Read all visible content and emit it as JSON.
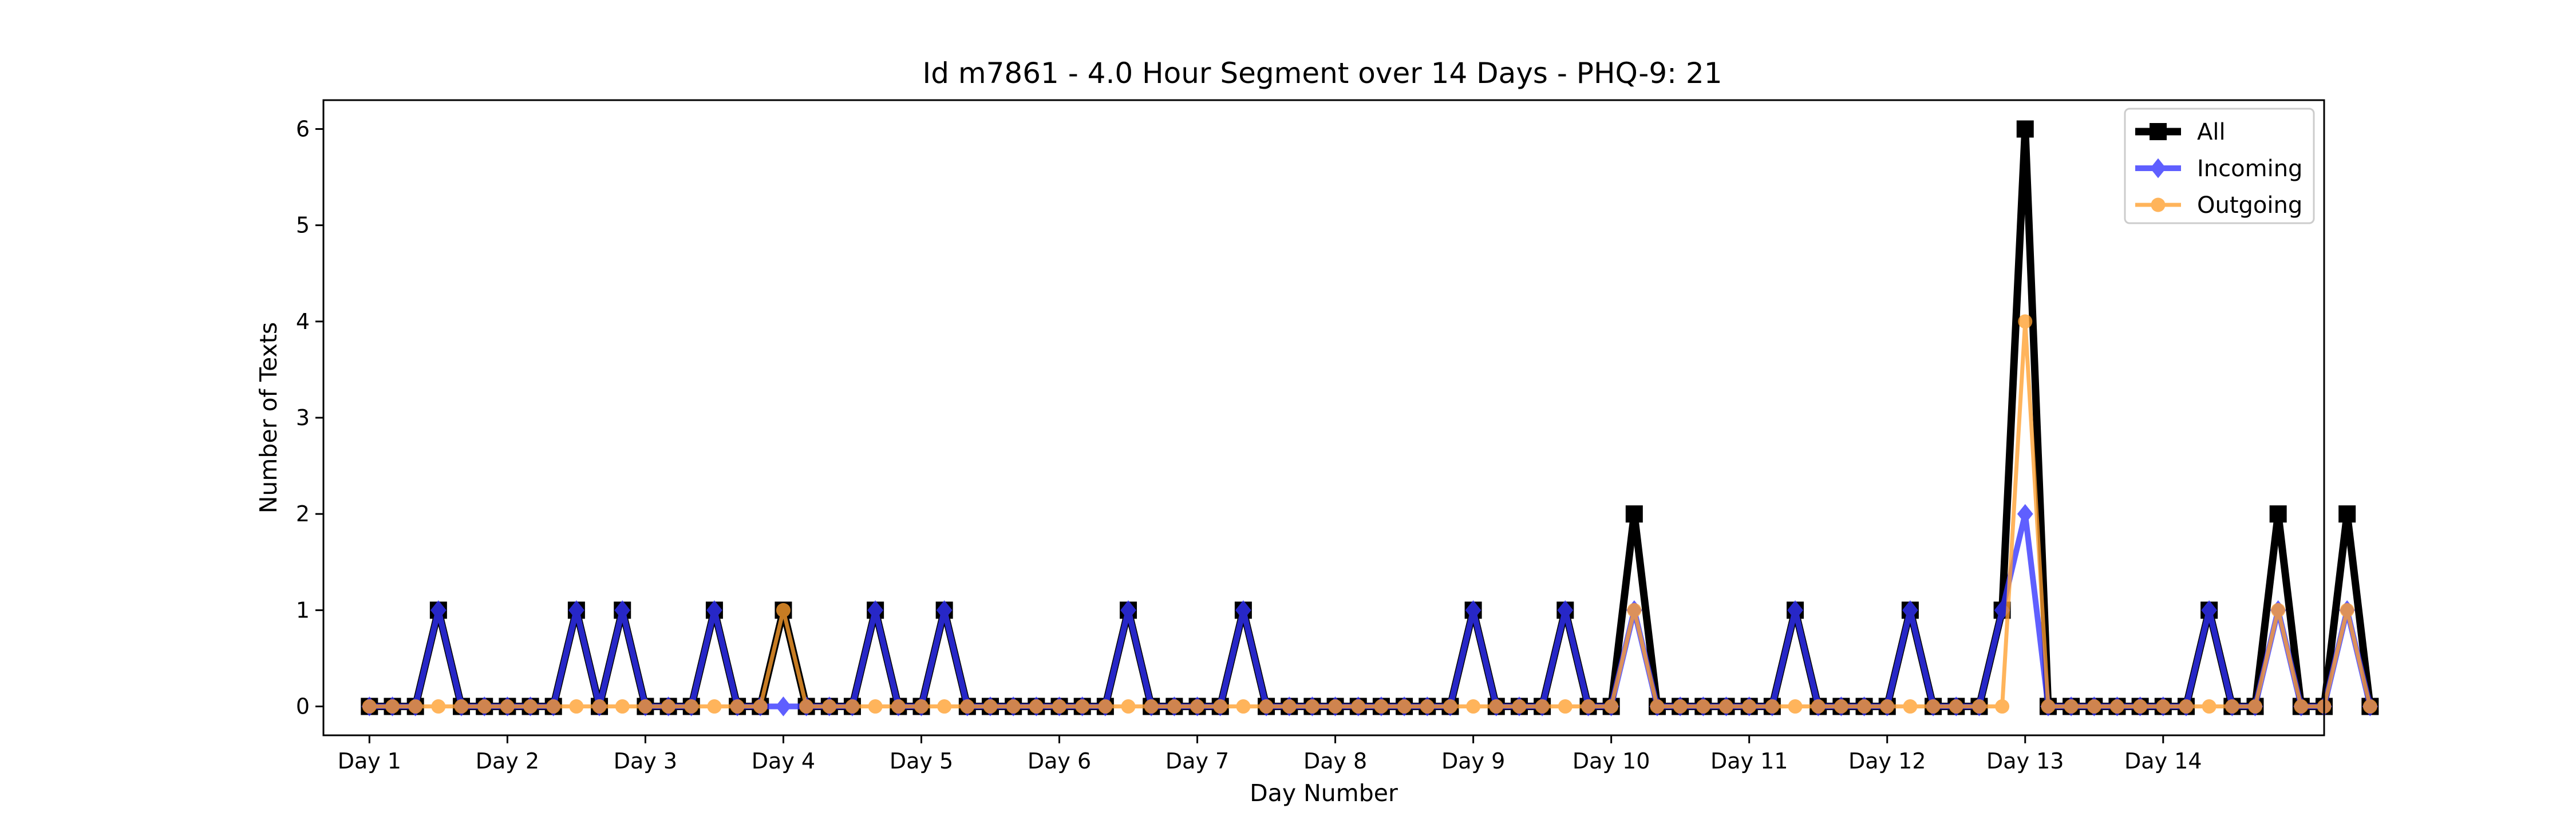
{
  "chart_data": {
    "type": "line",
    "title": "Id m7861 - 4.0 Hour Segment over 14 Days - PHQ-9: 21",
    "xlabel": "Day Number",
    "ylabel": "Number of Texts",
    "ylim": [
      -0.3,
      6.3
    ],
    "yticks": [
      0,
      1,
      2,
      3,
      4,
      5,
      6
    ],
    "xticks": [
      {
        "x": 0,
        "label": "Day 1"
      },
      {
        "x": 6,
        "label": "Day 2"
      },
      {
        "x": 12,
        "label": "Day 3"
      },
      {
        "x": 18,
        "label": "Day 4"
      },
      {
        "x": 24,
        "label": "Day 5"
      },
      {
        "x": 30,
        "label": "Day 6"
      },
      {
        "x": 36,
        "label": "Day 7"
      },
      {
        "x": 42,
        "label": "Day 8"
      },
      {
        "x": 48,
        "label": "Day 9"
      },
      {
        "x": 54,
        "label": "Day 10"
      },
      {
        "x": 60,
        "label": "Day 11"
      },
      {
        "x": 66,
        "label": "Day 12"
      },
      {
        "x": 72,
        "label": "Day 13"
      },
      {
        "x": 78,
        "label": "Day 14"
      }
    ],
    "grid": false,
    "legend_position": "top-right",
    "series": [
      {
        "name": "All",
        "color": "#000000",
        "marker": "square",
        "values": [
          0,
          0,
          0,
          1,
          0,
          0,
          0,
          0,
          0,
          1,
          0,
          1,
          0,
          0,
          0,
          1,
          0,
          0,
          1,
          0,
          0,
          0,
          1,
          0,
          0,
          1,
          0,
          0,
          0,
          0,
          0,
          0,
          0,
          1,
          0,
          0,
          0,
          0,
          1,
          0,
          0,
          0,
          0,
          0,
          0,
          0,
          0,
          0,
          1,
          0,
          0,
          0,
          1,
          0,
          0,
          2,
          0,
          0,
          0,
          0,
          0,
          0,
          1,
          0,
          0,
          0,
          0,
          1,
          0,
          0,
          0,
          1,
          6,
          0,
          0,
          0,
          0,
          0,
          0,
          0,
          1,
          0,
          0,
          2,
          0,
          0,
          2,
          0
        ]
      },
      {
        "name": "Incoming",
        "color": "#3333ff",
        "marker": "diamond",
        "values": [
          0,
          0,
          0,
          1,
          0,
          0,
          0,
          0,
          0,
          1,
          0,
          1,
          0,
          0,
          0,
          1,
          0,
          0,
          0,
          0,
          0,
          0,
          1,
          0,
          0,
          1,
          0,
          0,
          0,
          0,
          0,
          0,
          0,
          1,
          0,
          0,
          0,
          0,
          1,
          0,
          0,
          0,
          0,
          0,
          0,
          0,
          0,
          0,
          1,
          0,
          0,
          0,
          1,
          0,
          0,
          1,
          0,
          0,
          0,
          0,
          0,
          0,
          1,
          0,
          0,
          0,
          0,
          1,
          0,
          0,
          0,
          1,
          2,
          0,
          0,
          0,
          0,
          0,
          0,
          0,
          1,
          0,
          0,
          1,
          0,
          0,
          1,
          0
        ]
      },
      {
        "name": "Outgoing",
        "color": "#ff9f2e",
        "marker": "circle",
        "values": [
          0,
          0,
          0,
          0,
          0,
          0,
          0,
          0,
          0,
          0,
          0,
          0,
          0,
          0,
          0,
          0,
          0,
          0,
          1,
          0,
          0,
          0,
          0,
          0,
          0,
          0,
          0,
          0,
          0,
          0,
          0,
          0,
          0,
          0,
          0,
          0,
          0,
          0,
          0,
          0,
          0,
          0,
          0,
          0,
          0,
          0,
          0,
          0,
          0,
          0,
          0,
          0,
          0,
          0,
          0,
          1,
          0,
          0,
          0,
          0,
          0,
          0,
          0,
          0,
          0,
          0,
          0,
          0,
          0,
          0,
          0,
          0,
          4,
          0,
          0,
          0,
          0,
          0,
          0,
          0,
          0,
          0,
          0,
          1,
          0,
          0,
          1,
          0
        ]
      }
    ]
  }
}
